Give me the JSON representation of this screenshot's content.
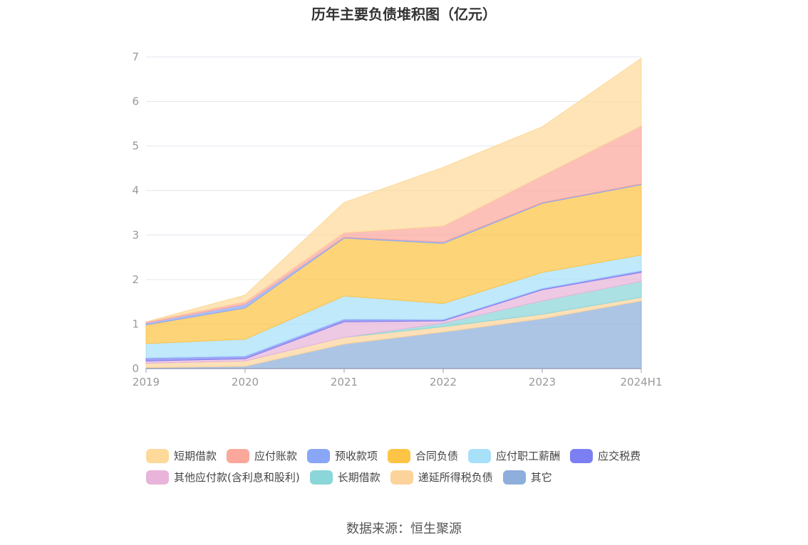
{
  "chart_data": {
    "type": "area",
    "stacked": true,
    "title": "历年主要负债堆积图（亿元）",
    "xlabel": "",
    "ylabel": "",
    "x": [
      "2019",
      "2020",
      "2021",
      "2022",
      "2023",
      "2024H1"
    ],
    "ylim": [
      0,
      7
    ],
    "yticks": [
      0,
      1,
      2,
      3,
      4,
      5,
      6,
      7
    ],
    "grid": true,
    "legend_position": "bottom",
    "series": [
      {
        "name": "其它",
        "color": "#8eaedb",
        "values": [
          0.02,
          0.05,
          0.55,
          0.82,
          1.12,
          1.52
        ]
      },
      {
        "name": "递延所得税负债",
        "color": "#fcd49b",
        "values": [
          0.1,
          0.12,
          0.15,
          0.12,
          0.1,
          0.08
        ]
      },
      {
        "name": "长期借款",
        "color": "#8ad6d8",
        "values": [
          0,
          0,
          0,
          0.08,
          0.3,
          0.36
        ]
      },
      {
        "name": "其他应付款(含利息和股利)",
        "color": "#e8b4d9",
        "values": [
          0.05,
          0.05,
          0.35,
          0.05,
          0.25,
          0.2
        ]
      },
      {
        "name": "应交税费",
        "color": "#7b7ff2",
        "values": [
          0.07,
          0.06,
          0.06,
          0.03,
          0.03,
          0.04
        ]
      },
      {
        "name": "应付职工薪酬",
        "color": "#a8e0fa",
        "values": [
          0.32,
          0.38,
          0.52,
          0.36,
          0.36,
          0.35
        ]
      },
      {
        "name": "合同负债",
        "color": "#fdc445",
        "values": [
          0.42,
          0.7,
          1.3,
          1.35,
          1.55,
          1.58
        ]
      },
      {
        "name": "预收款项",
        "color": "#8aa6f7",
        "values": [
          0.04,
          0.08,
          0.02,
          0.03,
          0.02,
          0.02
        ]
      },
      {
        "name": "应付账款",
        "color": "#fba79c",
        "values": [
          0.03,
          0.06,
          0.1,
          0.36,
          0.6,
          1.3
        ]
      },
      {
        "name": "短期借款",
        "color": "#fdd99a",
        "values": [
          0,
          0.15,
          0.68,
          1.32,
          1.1,
          1.52
        ]
      }
    ],
    "legend_order": [
      "短期借款",
      "应付账款",
      "预收款项",
      "合同负债",
      "应付职工薪酬",
      "应交税费",
      "其他应付款(含利息和股利)",
      "长期借款",
      "递延所得税负债",
      "其它"
    ]
  },
  "source": "数据来源：恒生聚源"
}
